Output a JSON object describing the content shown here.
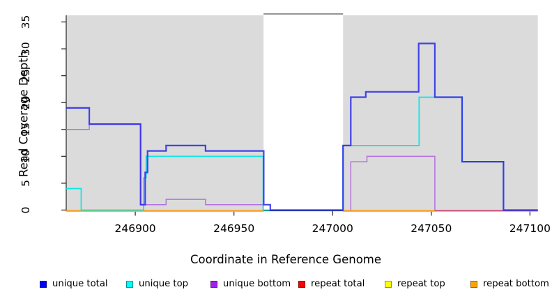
{
  "chart_data": {
    "type": "line",
    "subtype": "step-coverage-plot",
    "title": "",
    "xlabel": "Coordinate in Reference Genome",
    "ylabel": "Read Coverage Depth",
    "xlim": [
      246865,
      247104
    ],
    "ylim": [
      0,
      36.2
    ],
    "x_ticks": [
      246900,
      246950,
      247000,
      247050,
      247100
    ],
    "x_tick_labels": [
      "246900",
      "246950",
      "247000",
      "247050",
      "247100"
    ],
    "y_ticks": [
      0,
      5,
      10,
      15,
      20,
      25,
      30,
      35
    ],
    "grid": false,
    "plot_background": "#ffffff",
    "shaded_band_color": "#DBDBDB",
    "shaded_regions": [
      [
        246865,
        246965
      ],
      [
        247005.3,
        247104
      ]
    ],
    "no_data_gap": [
      246965,
      247005.3
    ],
    "gap_top_border_color": "#707070",
    "axis_color": "#333333",
    "legend_position": "bottom",
    "series": [
      {
        "name": "unique total",
        "line_color": "#2B2BEA",
        "z": 6,
        "segments": [
          {
            "points": [
              [
                246865,
                19
              ],
              [
                246876.7,
                16
              ],
              [
                246902.7,
                1
              ],
              [
                246905.0,
                7
              ],
              [
                246906.2,
                11
              ],
              [
                246915.6,
                12
              ],
              [
                246935.6,
                11
              ],
              [
                246965.1,
                1
              ],
              [
                246968.4,
                0
              ],
              [
                247005.3,
                12
              ],
              [
                247009.2,
                21
              ],
              [
                247016.8,
                22
              ],
              [
                247043.6,
                31
              ],
              [
                247051.8,
                21
              ],
              [
                247065.6,
                9
              ],
              [
                247086.6,
                0
              ]
            ],
            "end": 247104
          }
        ]
      },
      {
        "name": "unique top",
        "line_color": "#00E6E6",
        "z": 5,
        "segments": [
          {
            "points": [
              [
                246865,
                4
              ],
              [
                246872.6,
                0
              ],
              [
                246904.2,
                6
              ],
              [
                246905.5,
                10
              ],
              [
                246964.8,
                0
              ],
              [
                247005.3,
                12
              ],
              [
                247043.8,
                21
              ],
              [
                247065.6,
                9
              ],
              [
                247086.6,
                0
              ]
            ],
            "end": 247104
          }
        ]
      },
      {
        "name": "unique bottom",
        "line_color": "#B26BE0",
        "z": 4,
        "segments": [
          {
            "points": [
              [
                246865,
                15
              ],
              [
                246876.7,
                16
              ],
              [
                246902.7,
                1
              ],
              [
                246915.6,
                2
              ],
              [
                246935.6,
                1
              ],
              [
                246964.8,
                0
              ]
            ],
            "end": 246964.8
          },
          {
            "points": [
              [
                247009.2,
                0
              ],
              [
                247009.2,
                9
              ],
              [
                247017.4,
                10
              ],
              [
                247051.8,
                0
              ]
            ],
            "end": 247051.8
          }
        ]
      },
      {
        "name": "repeat total",
        "line_color": "#CC3D63",
        "z": 2,
        "segments": [
          {
            "points": [
              [
                246865,
                0
              ]
            ],
            "end": 246965
          },
          {
            "points": [
              [
                247005.3,
                0
              ]
            ],
            "end": 247104
          }
        ]
      },
      {
        "name": "repeat top",
        "line_color": "#E8E800",
        "z": 1,
        "segments": [
          {
            "points": [
              [
                246865,
                0
              ]
            ],
            "end": 246965
          },
          {
            "points": [
              [
                247005.3,
                0
              ]
            ],
            "end": 247104
          }
        ]
      },
      {
        "name": "repeat bottom",
        "line_color": "#FFA013",
        "z": 3,
        "segments": [
          {
            "points": [
              [
                246865,
                0
              ]
            ],
            "end": 246965
          },
          {
            "points": [
              [
                247005.3,
                0
              ]
            ],
            "end": 247051.8
          }
        ]
      }
    ]
  },
  "legend": {
    "items": [
      {
        "label": "unique total",
        "color": "#0000FF"
      },
      {
        "label": "unique top",
        "color": "#00FFFF"
      },
      {
        "label": "unique bottom",
        "color": "#A020F0"
      },
      {
        "label": "repeat total",
        "color": "#FF0000"
      },
      {
        "label": "repeat top",
        "color": "#FFFF00"
      },
      {
        "label": "repeat bottom",
        "color": "#FFA500"
      }
    ]
  }
}
